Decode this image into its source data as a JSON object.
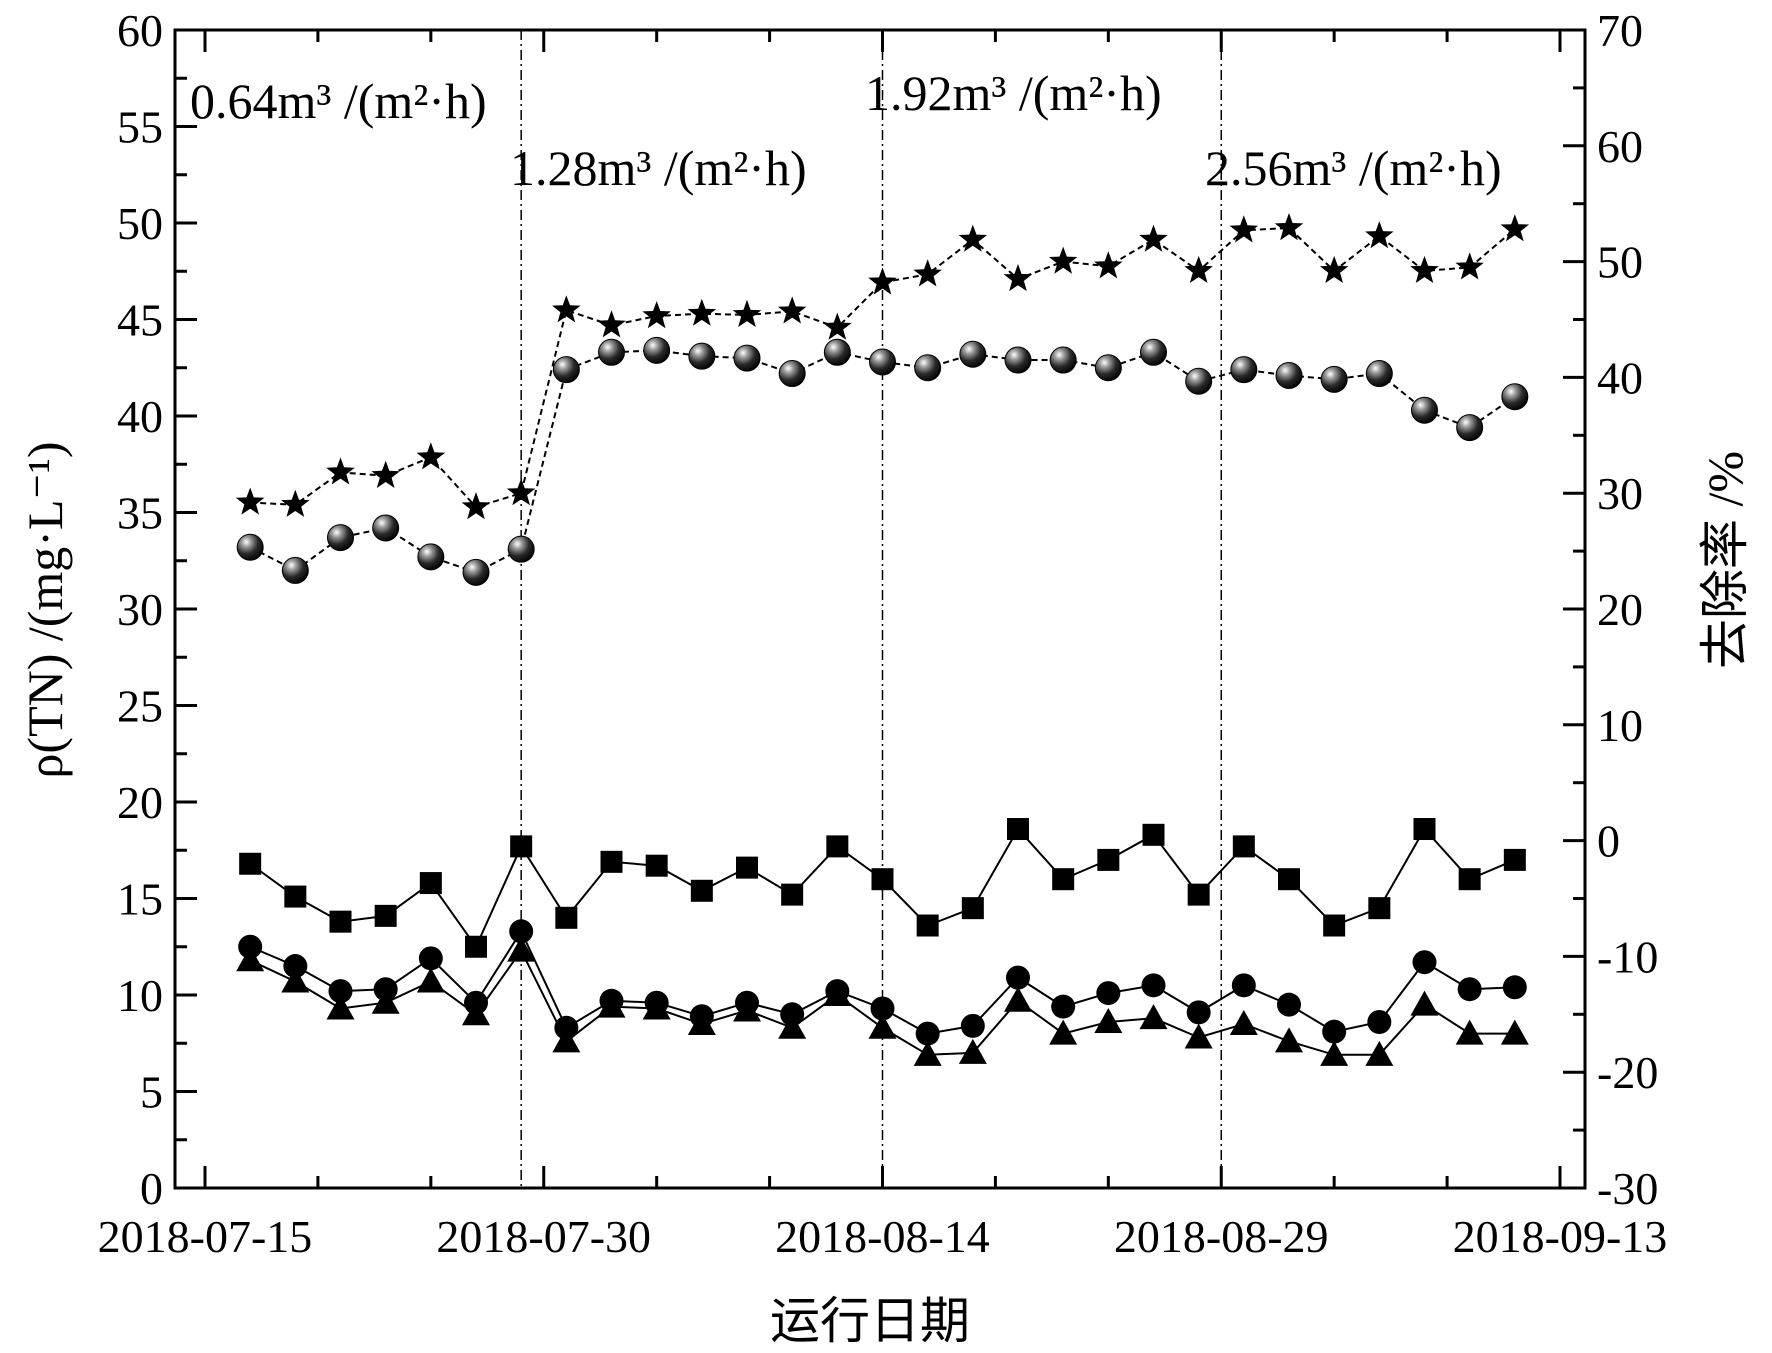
{
  "chart_data": {
    "type": "line",
    "x_ticks": [
      "2018-07-15",
      "2018-07-30",
      "2018-08-14",
      "2018-08-29",
      "2018-09-13"
    ],
    "xlabel": "运行日期",
    "ylabel_left": "ρ(TN) /(mg·L⁻¹)",
    "ylabel_right": "去除率 /%",
    "ylim_left": [
      0,
      60
    ],
    "ylim_right": [
      -30,
      70
    ],
    "y_ticks_left": [
      "0",
      "5",
      "10",
      "15",
      "20",
      "25",
      "30",
      "35",
      "40",
      "45",
      "50",
      "55",
      "60"
    ],
    "y_ticks_right": [
      "-30",
      "-20",
      "-10",
      "0",
      "10",
      "20",
      "30",
      "40",
      "50",
      "60",
      "70"
    ],
    "phases": [
      {
        "label": "0.64m³ /(m²·h)",
        "boundary_date": "2018-07-29"
      },
      {
        "label": "1.28m³ /(m²·h)",
        "boundary_date": "2018-08-14"
      },
      {
        "label": "1.92m³ /(m²·h)",
        "boundary_date": "2018-08-29"
      },
      {
        "label": "2.56m³ /(m²·h)",
        "boundary_date": null
      }
    ],
    "x": [
      "2018-07-17",
      "2018-07-19",
      "2018-07-21",
      "2018-07-23",
      "2018-07-25",
      "2018-07-27",
      "2018-07-29",
      "2018-07-31",
      "2018-08-02",
      "2018-08-04",
      "2018-08-06",
      "2018-08-08",
      "2018-08-10",
      "2018-08-12",
      "2018-08-14",
      "2018-08-16",
      "2018-08-18",
      "2018-08-20",
      "2018-08-22",
      "2018-08-24",
      "2018-08-26",
      "2018-08-28",
      "2018-08-30",
      "2018-09-01",
      "2018-09-03",
      "2018-09-05",
      "2018-09-07",
      "2018-09-09",
      "2018-09-11"
    ],
    "series": [
      {
        "marker": "square",
        "axis": "left",
        "values": [
          16.8,
          15.1,
          13.8,
          14.1,
          15.8,
          12.5,
          17.7,
          14.0,
          16.9,
          16.7,
          15.4,
          16.6,
          15.2,
          17.7,
          16.0,
          13.6,
          14.5,
          18.6,
          16.0,
          17.0,
          18.3,
          15.2,
          17.7,
          16.0,
          13.6,
          14.5,
          18.6,
          16.0,
          17.0
        ]
      },
      {
        "marker": "circle",
        "axis": "left",
        "values": [
          12.5,
          11.5,
          10.2,
          10.3,
          11.9,
          9.6,
          13.3,
          8.3,
          9.7,
          9.6,
          8.9,
          9.6,
          9.0,
          10.2,
          9.3,
          8.0,
          8.4,
          10.9,
          9.4,
          10.1,
          10.5,
          9.1,
          10.5,
          9.5,
          8.1,
          8.6,
          11.7,
          10.3,
          10.4
        ]
      },
      {
        "marker": "triangle",
        "axis": "left",
        "values": [
          11.8,
          10.7,
          9.3,
          9.6,
          10.7,
          9.0,
          12.3,
          7.6,
          9.4,
          9.3,
          8.5,
          9.2,
          8.3,
          10.0,
          8.3,
          6.9,
          7.0,
          9.7,
          8.0,
          8.6,
          8.8,
          7.8,
          8.5,
          7.6,
          6.9,
          6.9,
          9.5,
          8.0,
          8.0
        ]
      },
      {
        "marker": "sphere",
        "axis": "left",
        "values": [
          33.2,
          32.0,
          33.7,
          34.2,
          32.7,
          31.9,
          33.1,
          42.4,
          43.3,
          43.4,
          43.1,
          43.0,
          42.2,
          43.3,
          42.8,
          42.5,
          43.2,
          42.9,
          42.9,
          42.5,
          43.3,
          41.8,
          42.4,
          42.1,
          41.9,
          42.2,
          40.3,
          39.4,
          41.0
        ]
      },
      {
        "marker": "star",
        "axis": "right",
        "values": [
          29.2,
          29.0,
          31.8,
          31.5,
          33.1,
          28.8,
          30.0,
          45.8,
          44.5,
          45.3,
          45.5,
          45.4,
          45.7,
          44.3,
          48.2,
          48.9,
          51.9,
          48.5,
          50.0,
          49.6,
          51.9,
          49.2,
          52.7,
          52.9,
          49.2,
          52.2,
          49.2,
          49.5,
          52.8
        ]
      }
    ]
  }
}
